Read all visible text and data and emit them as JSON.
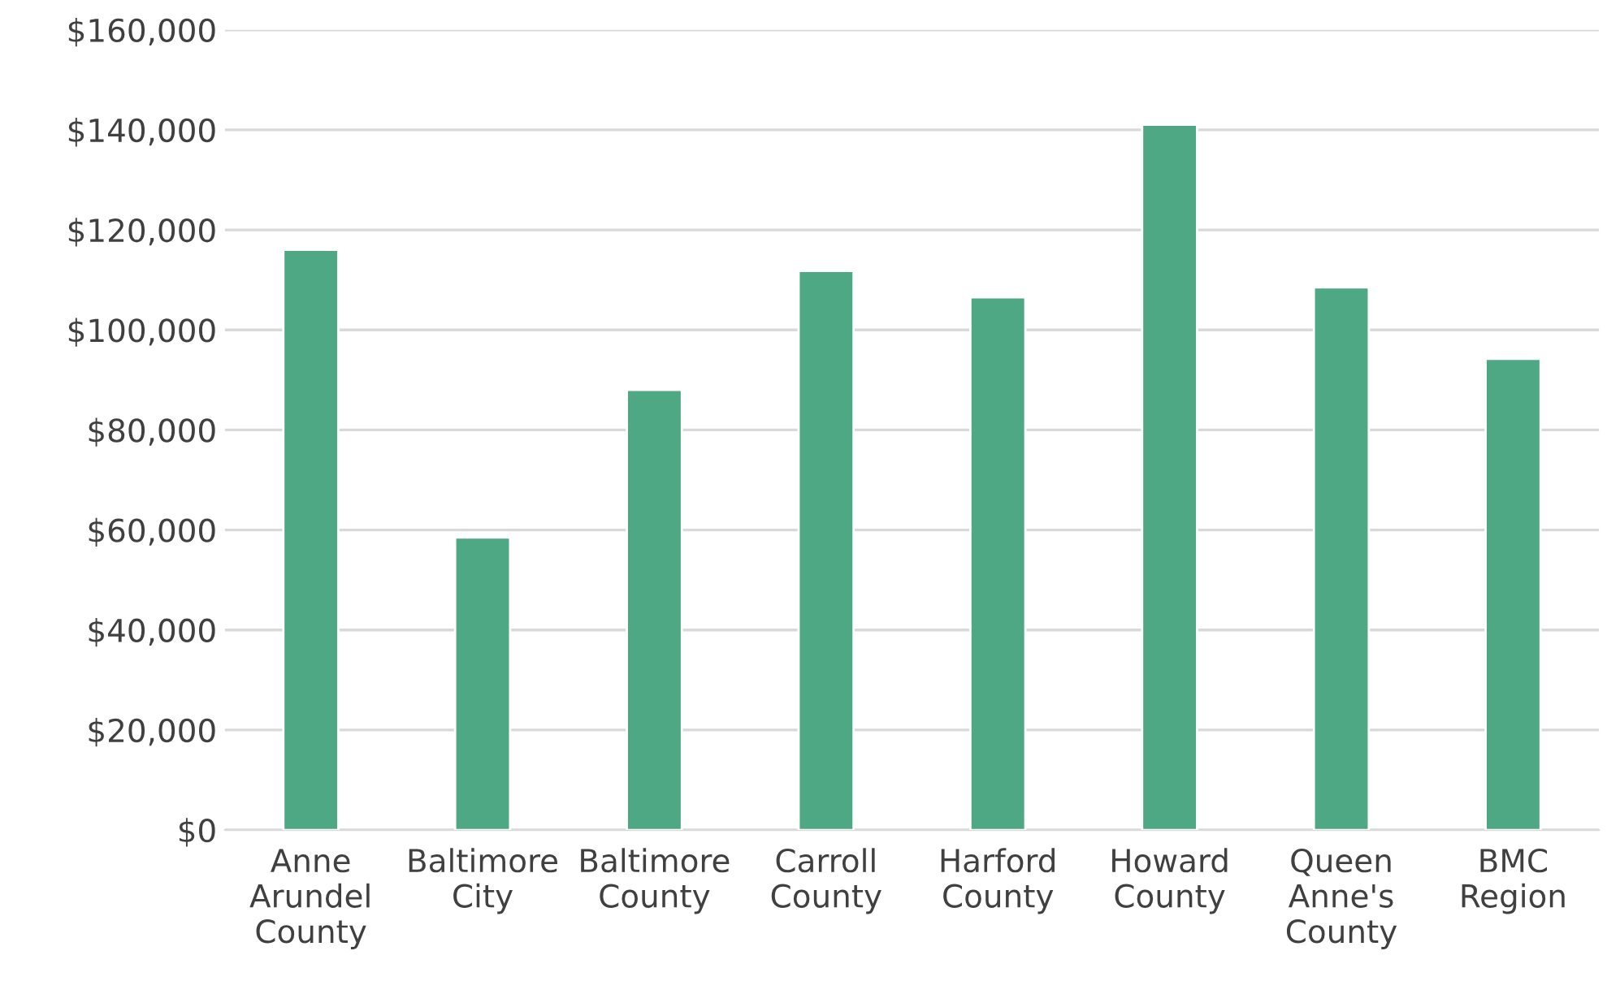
{
  "chart_data": {
    "type": "bar",
    "categories": [
      "Anne\nArundel\nCounty",
      "Baltimore\nCity",
      "Baltimore\nCounty",
      "Carroll\nCounty",
      "Harford\nCounty",
      "Howard\nCounty",
      "Queen\nAnne's\nCounty",
      "BMC\nRegion"
    ],
    "values": [
      116000,
      58500,
      88000,
      111800,
      106500,
      141000,
      108500,
      94200
    ],
    "color": "#4ea884",
    "ylim": [
      0,
      160000
    ],
    "yticks": [
      {
        "value": 0,
        "label": "$0"
      },
      {
        "value": 20000,
        "label": "$20,000"
      },
      {
        "value": 40000,
        "label": "$40,000"
      },
      {
        "value": 60000,
        "label": "$60,000"
      },
      {
        "value": 80000,
        "label": "$80,000"
      },
      {
        "value": 100000,
        "label": "$100,000"
      },
      {
        "value": 120000,
        "label": "$120,000"
      },
      {
        "value": 140000,
        "label": "$140,000"
      },
      {
        "value": 160000,
        "label": "$160,000"
      }
    ],
    "grid": "y"
  }
}
